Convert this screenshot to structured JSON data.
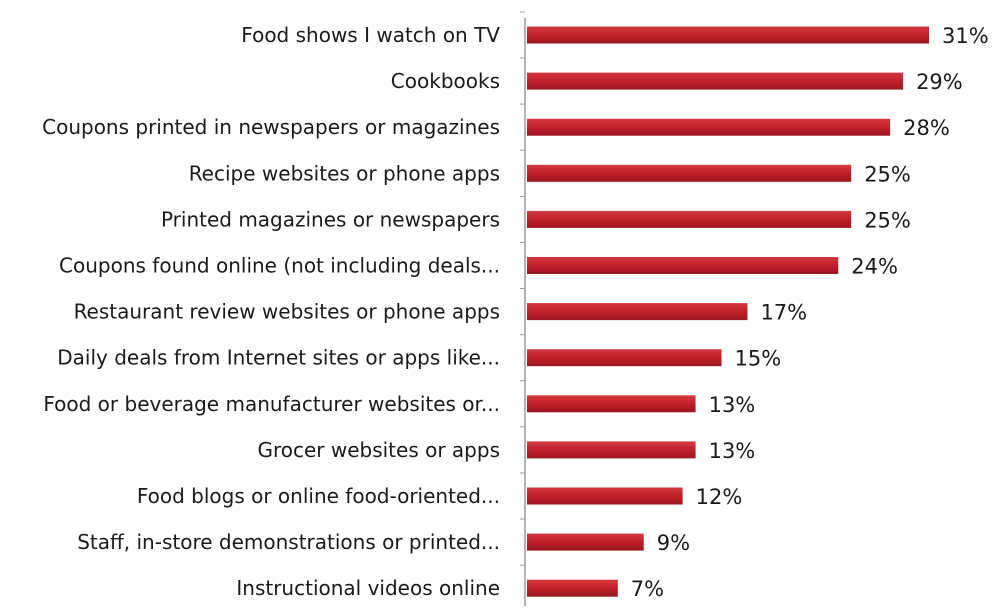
{
  "chart_data": {
    "type": "bar",
    "orientation": "horizontal",
    "title": "",
    "xlabel": "",
    "ylabel": "",
    "categories": [
      "Food shows I watch on TV",
      "Cookbooks",
      "Coupons printed in newspapers or magazines",
      "Recipe websites or phone apps",
      "Printed magazines or newspapers",
      "Coupons found online (not including deals...",
      "Restaurant review websites or phone apps",
      "Daily deals from Internet sites or apps like...",
      "Food or beverage manufacturer websites or...",
      "Grocer websites or apps",
      "Food blogs or online food-oriented...",
      "Staff, in-store demonstrations or printed...",
      "Instructional videos online"
    ],
    "values": [
      31,
      29,
      28,
      25,
      25,
      24,
      17,
      15,
      13,
      13,
      12,
      9,
      7
    ],
    "value_labels": [
      "31%",
      "29%",
      "28%",
      "25%",
      "25%",
      "24%",
      "17%",
      "15%",
      "13%",
      "13%",
      "12%",
      "9%",
      "7%"
    ],
    "xlim": [
      0,
      31
    ],
    "grid": false,
    "legend": "none",
    "bar_color": "#c0202a",
    "axis_color": "#9a9a9a"
  }
}
